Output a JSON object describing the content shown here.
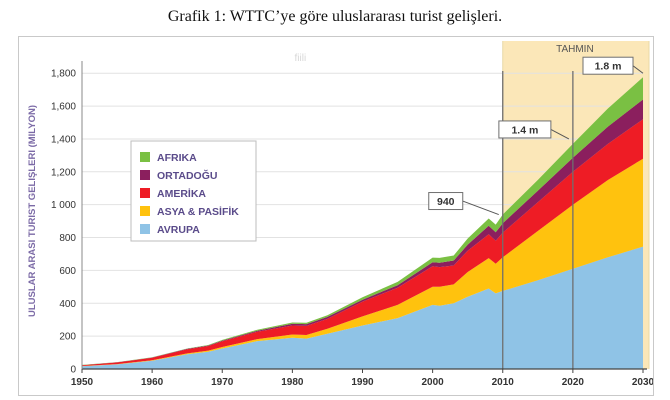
{
  "caption": "Grafik 1: WTTC’ye göre uluslararası turist gelişleri.",
  "chart_data": {
    "type": "area",
    "stacked": true,
    "ylabel": "ULUSLAR ARASI TURIST GELIŞLERI (MILYON)",
    "xlim": [
      1950,
      2030
    ],
    "ylim": [
      0,
      1850
    ],
    "x_ticks": [
      "1950",
      "1960",
      "1970",
      "1980",
      "1990",
      "2000",
      "2010",
      "2020",
      "2030"
    ],
    "y_ticks": [
      "0",
      "200",
      "400",
      "600",
      "800",
      "1 000",
      "1,200",
      "1,400",
      "1,600",
      "1,800"
    ],
    "y_tick_values": [
      0,
      200,
      400,
      600,
      800,
      1000,
      1200,
      1400,
      1600,
      1800
    ],
    "grid": "horizontal",
    "legend_position": "left",
    "regions": [
      {
        "label": "fiili",
        "from": 1950,
        "to": 2010
      },
      {
        "label": "TAHMIN",
        "from": 2010,
        "to": 2030
      }
    ],
    "annotations": [
      {
        "text": "940",
        "x": 2010,
        "y": 940
      },
      {
        "text": "1.4  m",
        "x": 2020,
        "y": 1400
      },
      {
        "text": "1.8  m",
        "x": 2030,
        "y": 1800
      }
    ],
    "x": [
      1950,
      1955,
      1960,
      1965,
      1968,
      1970,
      1975,
      1980,
      1982,
      1985,
      1990,
      1995,
      2000,
      2001,
      2003,
      2005,
      2008,
      2009,
      2010,
      2015,
      2020,
      2025,
      2030
    ],
    "series": [
      {
        "name": "AVRUPA",
        "color": "#8fc3e6",
        "values": [
          17,
          28,
          50,
          90,
          105,
          125,
          170,
          190,
          185,
          215,
          265,
          310,
          390,
          385,
          400,
          440,
          490,
          460,
          475,
          540,
          610,
          680,
          745
        ]
      },
      {
        "name": "ASYA & PASİFİK",
        "color": "#ffc20e",
        "values": [
          1,
          2,
          3,
          5,
          7,
          9,
          12,
          20,
          22,
          30,
          55,
          80,
          110,
          115,
          115,
          150,
          185,
          180,
          205,
          300,
          390,
          470,
          535
        ]
      },
      {
        "name": "AMERİKA",
        "color": "#ee1c25",
        "values": [
          5,
          10,
          15,
          25,
          28,
          35,
          45,
          55,
          55,
          60,
          90,
          105,
          125,
          120,
          115,
          130,
          145,
          140,
          150,
          175,
          200,
          220,
          240
        ]
      },
      {
        "name": "ORTADOĞU",
        "color": "#8b1f5e",
        "values": [
          1,
          1,
          2,
          3,
          3,
          4,
          6,
          10,
          11,
          12,
          12,
          15,
          25,
          27,
          30,
          37,
          52,
          52,
          57,
          70,
          85,
          105,
          120
        ]
      },
      {
        "name": "AFRIKA",
        "color": "#7ac043",
        "values": [
          1,
          1,
          2,
          2,
          3,
          4,
          6,
          8,
          9,
          10,
          15,
          20,
          28,
          29,
          31,
          37,
          44,
          47,
          53,
          65,
          85,
          110,
          135
        ]
      }
    ]
  }
}
